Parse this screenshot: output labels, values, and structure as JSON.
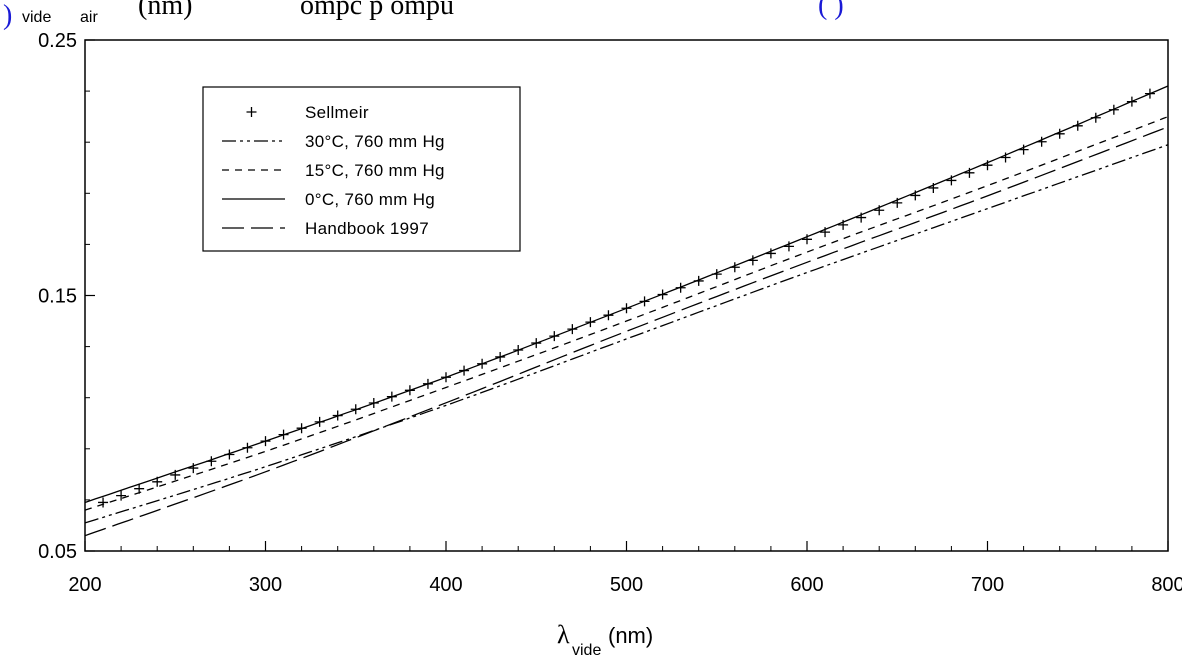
{
  "header": {
    "fragment_left_blue": ")",
    "fragment_sub_vide": "vide",
    "fragment_sub_air": "air",
    "fragment_nm": "(nm)",
    "fragment_mid": "ompc p    ompu",
    "fragment_right_blue": "(   )"
  },
  "chart_data": {
    "type": "line",
    "title": "",
    "xlabel_symbol": "λ",
    "xlabel_sub": "vide",
    "xlabel_unit": "(nm)",
    "ylabel": "",
    "xlim": [
      200,
      800
    ],
    "ylim": [
      0.05,
      0.25
    ],
    "xticks": [
      "200",
      "300",
      "400",
      "500",
      "600",
      "700",
      "800"
    ],
    "yticks": [
      "0.05",
      "0.15",
      "0.25"
    ],
    "x": [
      200,
      300,
      400,
      500,
      600,
      700,
      800
    ],
    "series": [
      {
        "name": "Sellmeir",
        "style": "plus-markers",
        "x": [
          210,
          300,
          400,
          500,
          600,
          700,
          790
        ],
        "values": [
          0.069,
          0.093,
          0.118,
          0.145,
          0.172,
          0.201,
          0.229
        ]
      },
      {
        "name": "30°C, 760 mm Hg",
        "style": "dash-dot-dot",
        "values": [
          0.061,
          0.083,
          0.107,
          0.133,
          0.159,
          0.184,
          0.209
        ]
      },
      {
        "name": "15°C, 760 mm Hg",
        "style": "short-dash",
        "values": [
          0.066,
          0.089,
          0.114,
          0.14,
          0.167,
          0.193,
          0.22
        ]
      },
      {
        "name": "0°C, 760 mm Hg",
        "style": "solid",
        "values": [
          0.069,
          0.093,
          0.118,
          0.145,
          0.173,
          0.202,
          0.232
        ]
      },
      {
        "name": "Handbook 1997",
        "style": "long-dash",
        "values": [
          0.056,
          0.081,
          0.108,
          0.136,
          0.163,
          0.189,
          0.216
        ]
      }
    ],
    "legend_position": "top-left inside plot",
    "grid": false
  }
}
